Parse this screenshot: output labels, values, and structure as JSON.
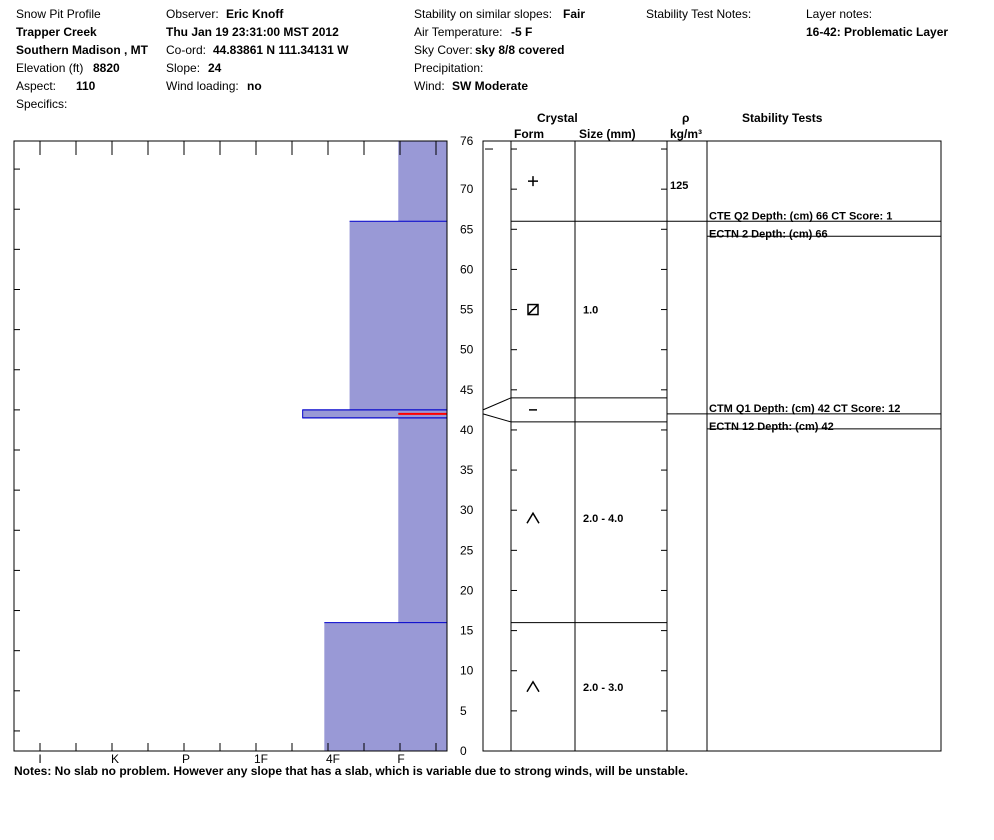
{
  "header": {
    "col1": {
      "title": "Snow Pit Profile",
      "location": "Trapper Creek",
      "region": "Southern Madison , MT",
      "elevation_label": "Elevation (ft)",
      "elevation": "8820",
      "aspect_label": "Aspect:",
      "aspect": "110",
      "specifics_label": "Specifics:"
    },
    "col2": {
      "observer_label": "Observer:",
      "observer": "Eric Knoff",
      "datetime": "Thu Jan 19 23:31:00 MST 2012",
      "coord_label": "Co-ord:",
      "coord": "44.83861 N 111.34131 W",
      "slope_label": "Slope:",
      "slope": "24",
      "wind_loading_label": "Wind loading:",
      "wind_loading": "no"
    },
    "col3": {
      "stability_label": "Stability on similar slopes:",
      "stability": "Fair",
      "air_temp_label": "Air Temperature:",
      "air_temp": "-5 F",
      "sky_label": "Sky Cover:",
      "sky": "sky 8/8 covered",
      "precip_label": "Precipitation:",
      "wind_label": "Wind:",
      "wind": "SW Moderate"
    },
    "col4": {
      "stability_notes_label": "Stability Test Notes:"
    },
    "col5": {
      "layer_notes_label": "Layer notes:",
      "layer_note": "16-42: Problematic Layer"
    }
  },
  "columns": {
    "crystal": "Crystal",
    "form": "Form",
    "size": "Size (mm)",
    "rho": "ρ",
    "density_unit": "kg/m³",
    "stability_tests": "Stability Tests"
  },
  "notes": "Notes:  No slab no problem.  However any slope that has a slab, which is variable due to strong winds, will be unstable.",
  "chart_data": {
    "type": "bar",
    "description_free": true,
    "ylim": [
      0,
      76
    ],
    "y_ticks": [
      0,
      5,
      10,
      15,
      20,
      25,
      30,
      35,
      40,
      45,
      50,
      55,
      60,
      65,
      70,
      76
    ],
    "hardness_ticks": [
      "I",
      "K",
      "P",
      "1F",
      "4F",
      "F"
    ],
    "hardness_scale_max": 12,
    "layers": [
      {
        "bottom": 0,
        "top": 16,
        "hardness": 3.4
      },
      {
        "bottom": 16,
        "top": 41.5,
        "hardness": 1.35
      },
      {
        "bottom": 41.5,
        "top": 42.5,
        "hardness": 4.0
      },
      {
        "bottom": 42.5,
        "top": 66,
        "hardness": 2.7
      },
      {
        "bottom": 66,
        "top": 76,
        "hardness": 1.35
      }
    ],
    "temperature_marker_depth": 42,
    "boundaries": [
      16,
      41,
      44,
      66
    ],
    "crystals": [
      {
        "depth": 71,
        "form": "+",
        "size": ""
      },
      {
        "depth": 55,
        "form": "square",
        "size": "1.0"
      },
      {
        "depth": 42.5,
        "form": "−",
        "size": ""
      },
      {
        "depth": 29,
        "form": "^",
        "size": "2.0 - 4.0"
      },
      {
        "depth": 8,
        "form": "^",
        "size": "2.0 - 3.0"
      }
    ],
    "density": [
      {
        "depth": 70.5,
        "value": "125"
      }
    ],
    "stability_tests": [
      {
        "depth": 66,
        "lines": [
          "CTE Q2 Depth: (cm) 66 CT Score: 1",
          "ECTN 2   Depth: (cm) 66"
        ]
      },
      {
        "depth": 42,
        "lines": [
          "CTM Q1 Depth: (cm) 42 CT Score: 12",
          "ECTN 12   Depth: (cm) 42"
        ]
      }
    ],
    "colors": {
      "fill": "#9999d6",
      "boundary": "#0000cc",
      "marker": "#ff0000"
    }
  }
}
